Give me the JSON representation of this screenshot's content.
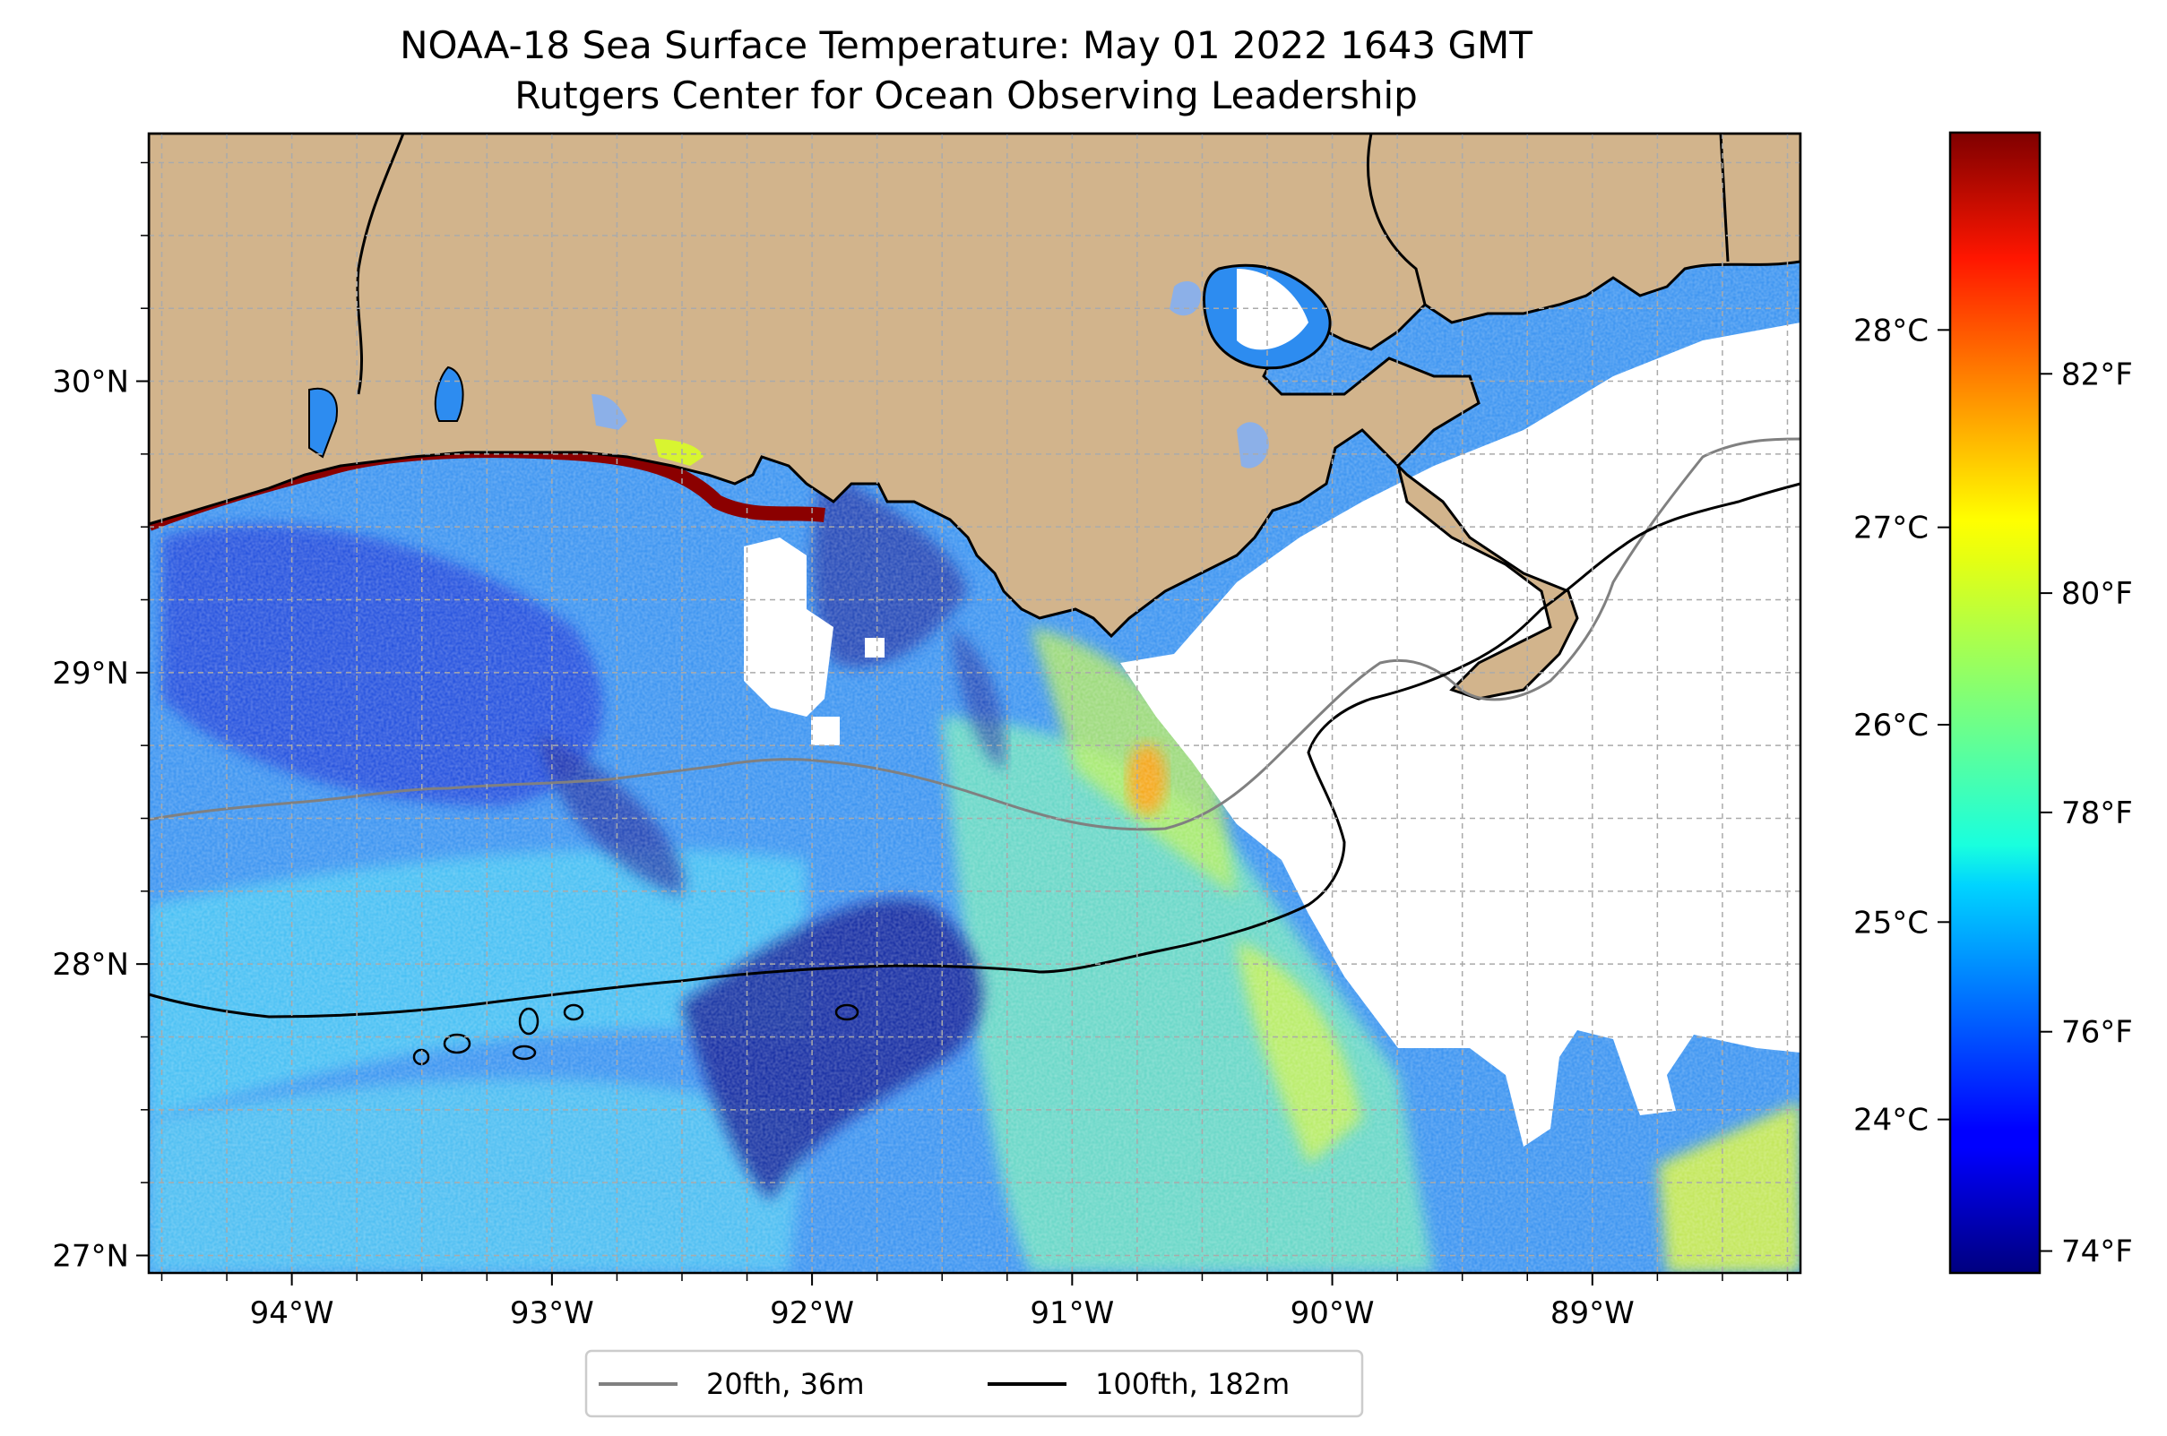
{
  "title": "NOAA-18 Sea Surface Temperature: May 01 2022 1643 GMT",
  "subtitle": "Rutgers Center for Ocean Observing Leadership",
  "map": {
    "lon_range": [
      -94.55,
      -88.2
    ],
    "lat_range": [
      26.94,
      30.85
    ],
    "lon_ticks": [
      {
        "value": -94,
        "label": "94°W"
      },
      {
        "value": -93,
        "label": "93°W"
      },
      {
        "value": -92,
        "label": "92°W"
      },
      {
        "value": -91,
        "label": "91°W"
      },
      {
        "value": -90,
        "label": "90°W"
      },
      {
        "value": -89,
        "label": "89°W"
      }
    ],
    "lat_ticks": [
      {
        "value": 27,
        "label": "27°N"
      },
      {
        "value": 28,
        "label": "28°N"
      },
      {
        "value": 29,
        "label": "29°N"
      },
      {
        "value": 30,
        "label": "30°N"
      }
    ],
    "grid": true,
    "land_color": "#d2b48c"
  },
  "colorbar": {
    "colormap": "jet",
    "range_f": [
      73.8,
      84.2
    ],
    "f_ticks": [
      {
        "value": 74,
        "label": "74°F"
      },
      {
        "value": 76,
        "label": "76°F"
      },
      {
        "value": 78,
        "label": "78°F"
      },
      {
        "value": 80,
        "label": "80°F"
      },
      {
        "value": 82,
        "label": "82°F"
      }
    ],
    "c_ticks": [
      {
        "value": 24,
        "label": "24°C"
      },
      {
        "value": 25,
        "label": "25°C"
      },
      {
        "value": 26,
        "label": "26°C"
      },
      {
        "value": 27,
        "label": "27°C"
      },
      {
        "value": 28,
        "label": "28°C"
      }
    ]
  },
  "legend": {
    "placement": "bottom-center",
    "items": [
      {
        "label": "20fth, 36m",
        "color": "#808080"
      },
      {
        "label": "100fth, 182m",
        "color": "#000000"
      }
    ]
  }
}
